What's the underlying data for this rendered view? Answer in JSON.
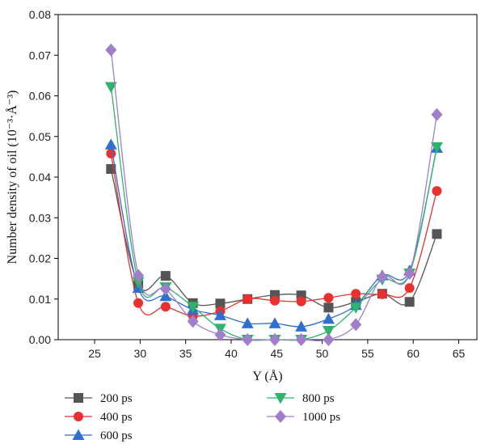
{
  "chart_data": {
    "type": "line",
    "xlabel": "Y (Å)",
    "ylabel": "Number density of oil (10⁻³·Å⁻³)",
    "xlim": [
      21,
      67
    ],
    "ylim": [
      0,
      0.08
    ],
    "x_ticks": [
      25,
      30,
      35,
      40,
      45,
      50,
      55,
      60,
      65
    ],
    "x_tick_labels": [
      "25",
      "30",
      "35",
      "40",
      "45",
      "50",
      "55",
      "60",
      "65"
    ],
    "y_ticks": [
      0,
      0.01,
      0.02,
      0.03,
      0.04,
      0.05,
      0.06,
      0.07,
      0.08
    ],
    "y_tick_labels": [
      "0.00",
      "0.01",
      "0.02",
      "0.03",
      "0.04",
      "0.05",
      "0.06",
      "0.07",
      "0.08"
    ],
    "grid": false,
    "legend_position": "bottom",
    "smooth": true,
    "x": [
      26.8,
      29.8,
      32.8,
      35.8,
      38.8,
      41.8,
      44.8,
      47.7,
      50.7,
      53.7,
      56.6,
      59.6,
      62.6
    ],
    "series": [
      {
        "name": "200 ps",
        "color": "#555555",
        "marker": "square",
        "values": [
          0.042,
          0.0135,
          0.0157,
          0.009,
          0.0089,
          0.01,
          0.011,
          0.0109,
          0.0079,
          0.0093,
          0.0113,
          0.0093,
          0.026
        ]
      },
      {
        "name": "400 ps",
        "color": "#e8312f",
        "marker": "circle",
        "values": [
          0.0458,
          0.009,
          0.0081,
          0.0058,
          0.007,
          0.01,
          0.0096,
          0.0094,
          0.0103,
          0.0113,
          0.0112,
          0.0127,
          0.0366
        ]
      },
      {
        "name": "600 ps",
        "color": "#2f6fcf",
        "marker": "triangle-up",
        "values": [
          0.048,
          0.0127,
          0.0107,
          0.0074,
          0.006,
          0.004,
          0.004,
          0.0032,
          0.0051,
          0.0085,
          0.0158,
          0.017,
          0.0472
        ]
      },
      {
        "name": "800 ps",
        "color": "#2db36b",
        "marker": "triangle-down",
        "values": [
          0.0622,
          0.0142,
          0.0129,
          0.0081,
          0.0027,
          0.0,
          0.0,
          0.0,
          0.0022,
          0.0079,
          0.0148,
          0.0163,
          0.0474
        ]
      },
      {
        "name": "1000 ps",
        "color": "#a07ec9",
        "marker": "diamond",
        "values": [
          0.0713,
          0.0158,
          0.0125,
          0.0045,
          0.0012,
          0.0,
          0.0,
          0.0,
          0.0,
          0.0037,
          0.0154,
          0.0163,
          0.0554
        ]
      }
    ]
  }
}
